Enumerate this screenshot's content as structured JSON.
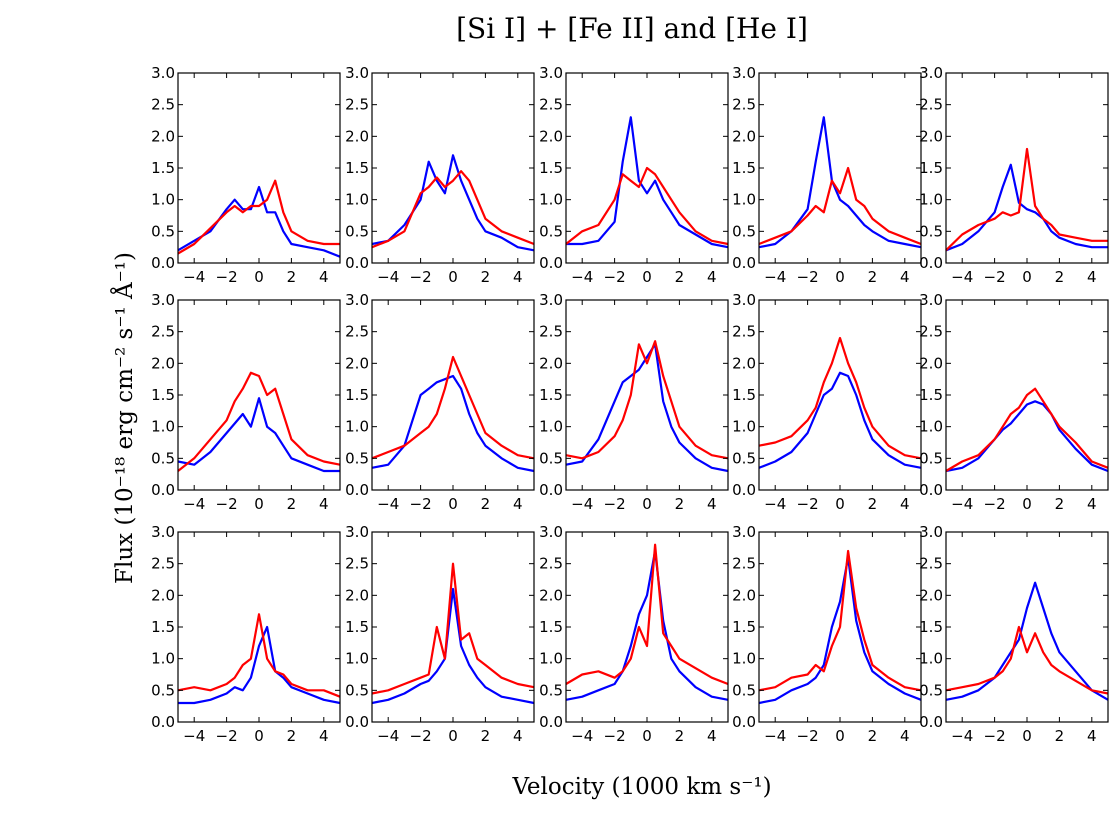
{
  "title": "[Si I] + [Fe II] and [He I]",
  "xlabel": "Velocity (1000 km s⁻¹)",
  "ylabel": "Flux (10⁻¹⁸ erg cm⁻² s⁻¹ Å⁻¹)",
  "colors": {
    "series_blue": "#0000ff",
    "series_red": "#ff0000"
  },
  "chart_data": {
    "type": "line",
    "layout": "grid of 3 rows x 5 columns",
    "x_range": [
      -5,
      5
    ],
    "ylim": [
      0,
      3.0
    ],
    "xticks": [
      -4,
      -2,
      0,
      2,
      4
    ],
    "xtick_labels": [
      "−4",
      "−2",
      "0",
      "2",
      "4"
    ],
    "yticks": [
      0,
      0.5,
      1.0,
      1.5,
      2.0,
      2.5,
      3.0
    ],
    "ytick_labels": [
      "0.0",
      "0.5",
      "1.0",
      "1.5",
      "2.0",
      "2.5",
      "3.0"
    ],
    "x": [
      -5,
      -4,
      -3,
      -2,
      -1.5,
      -1,
      -0.5,
      0,
      0.5,
      1,
      1.5,
      2,
      3,
      4,
      5
    ],
    "panels": [
      {
        "row": 1,
        "col": 1,
        "series": [
          {
            "name": "blue",
            "values": [
              0.2,
              0.35,
              0.5,
              0.85,
              1.0,
              0.85,
              0.85,
              1.2,
              0.8,
              0.8,
              0.5,
              0.3,
              0.25,
              0.2,
              0.1
            ]
          },
          {
            "name": "red",
            "values": [
              0.15,
              0.3,
              0.55,
              0.8,
              0.9,
              0.8,
              0.9,
              0.9,
              1.0,
              1.3,
              0.8,
              0.5,
              0.35,
              0.3,
              0.3
            ]
          }
        ]
      },
      {
        "row": 1,
        "col": 2,
        "series": [
          {
            "name": "blue",
            "values": [
              0.3,
              0.35,
              0.6,
              1.0,
              1.6,
              1.3,
              1.1,
              1.7,
              1.3,
              1.0,
              0.7,
              0.5,
              0.4,
              0.25,
              0.2
            ]
          },
          {
            "name": "red",
            "values": [
              0.25,
              0.35,
              0.5,
              1.1,
              1.2,
              1.35,
              1.2,
              1.3,
              1.45,
              1.3,
              1.0,
              0.7,
              0.5,
              0.4,
              0.3
            ]
          }
        ]
      },
      {
        "row": 1,
        "col": 3,
        "series": [
          {
            "name": "blue",
            "values": [
              0.3,
              0.3,
              0.35,
              0.65,
              1.6,
              2.3,
              1.3,
              1.1,
              1.3,
              1.0,
              0.8,
              0.6,
              0.45,
              0.3,
              0.25
            ]
          },
          {
            "name": "red",
            "values": [
              0.3,
              0.5,
              0.6,
              1.0,
              1.4,
              1.3,
              1.2,
              1.5,
              1.4,
              1.2,
              1.0,
              0.8,
              0.5,
              0.35,
              0.3
            ]
          }
        ]
      },
      {
        "row": 1,
        "col": 4,
        "series": [
          {
            "name": "blue",
            "values": [
              0.25,
              0.3,
              0.5,
              0.85,
              1.6,
              2.3,
              1.3,
              1.0,
              0.9,
              0.75,
              0.6,
              0.5,
              0.35,
              0.3,
              0.25
            ]
          },
          {
            "name": "red",
            "values": [
              0.3,
              0.4,
              0.5,
              0.75,
              0.9,
              0.8,
              1.3,
              1.1,
              1.5,
              1.0,
              0.9,
              0.7,
              0.5,
              0.4,
              0.3
            ]
          }
        ]
      },
      {
        "row": 1,
        "col": 5,
        "series": [
          {
            "name": "blue",
            "values": [
              0.2,
              0.3,
              0.5,
              0.8,
              1.2,
              1.55,
              0.95,
              0.85,
              0.8,
              0.7,
              0.5,
              0.4,
              0.3,
              0.25,
              0.25
            ]
          },
          {
            "name": "red",
            "values": [
              0.2,
              0.45,
              0.6,
              0.7,
              0.8,
              0.75,
              0.8,
              1.8,
              0.9,
              0.7,
              0.6,
              0.45,
              0.4,
              0.35,
              0.35
            ]
          }
        ]
      },
      {
        "row": 2,
        "col": 1,
        "series": [
          {
            "name": "blue",
            "values": [
              0.45,
              0.4,
              0.6,
              0.9,
              1.05,
              1.2,
              1.0,
              1.45,
              1.0,
              0.9,
              0.7,
              0.5,
              0.4,
              0.3,
              0.3
            ]
          },
          {
            "name": "red",
            "values": [
              0.3,
              0.5,
              0.8,
              1.1,
              1.4,
              1.6,
              1.85,
              1.8,
              1.5,
              1.6,
              1.2,
              0.8,
              0.55,
              0.45,
              0.4
            ]
          }
        ]
      },
      {
        "row": 2,
        "col": 2,
        "series": [
          {
            "name": "blue",
            "values": [
              0.35,
              0.4,
              0.7,
              1.5,
              1.6,
              1.7,
              1.75,
              1.8,
              1.6,
              1.2,
              0.9,
              0.7,
              0.5,
              0.35,
              0.3
            ]
          },
          {
            "name": "red",
            "values": [
              0.5,
              0.6,
              0.7,
              0.9,
              1.0,
              1.2,
              1.6,
              2.1,
              1.8,
              1.5,
              1.2,
              0.9,
              0.7,
              0.55,
              0.5
            ]
          }
        ]
      },
      {
        "row": 2,
        "col": 3,
        "series": [
          {
            "name": "blue",
            "values": [
              0.4,
              0.45,
              0.8,
              1.4,
              1.7,
              1.8,
              1.9,
              2.1,
              2.3,
              1.4,
              1.0,
              0.75,
              0.5,
              0.35,
              0.3
            ]
          },
          {
            "name": "red",
            "values": [
              0.55,
              0.5,
              0.6,
              0.85,
              1.1,
              1.5,
              2.3,
              2.0,
              2.35,
              1.8,
              1.4,
              1.0,
              0.7,
              0.55,
              0.5
            ]
          }
        ]
      },
      {
        "row": 2,
        "col": 4,
        "series": [
          {
            "name": "blue",
            "values": [
              0.35,
              0.45,
              0.6,
              0.9,
              1.2,
              1.5,
              1.6,
              1.85,
              1.8,
              1.5,
              1.1,
              0.8,
              0.55,
              0.4,
              0.35
            ]
          },
          {
            "name": "red",
            "values": [
              0.7,
              0.75,
              0.85,
              1.1,
              1.3,
              1.7,
              2.0,
              2.4,
              2.0,
              1.7,
              1.3,
              1.0,
              0.7,
              0.55,
              0.5
            ]
          }
        ]
      },
      {
        "row": 2,
        "col": 5,
        "series": [
          {
            "name": "blue",
            "values": [
              0.3,
              0.35,
              0.5,
              0.8,
              0.95,
              1.05,
              1.2,
              1.35,
              1.4,
              1.35,
              1.2,
              0.95,
              0.65,
              0.4,
              0.3
            ]
          },
          {
            "name": "red",
            "values": [
              0.3,
              0.45,
              0.55,
              0.8,
              1.0,
              1.2,
              1.3,
              1.5,
              1.6,
              1.4,
              1.2,
              1.0,
              0.75,
              0.45,
              0.35
            ]
          }
        ]
      },
      {
        "row": 3,
        "col": 1,
        "series": [
          {
            "name": "blue",
            "values": [
              0.3,
              0.3,
              0.35,
              0.45,
              0.55,
              0.5,
              0.7,
              1.2,
              1.5,
              0.8,
              0.7,
              0.55,
              0.45,
              0.35,
              0.3
            ]
          },
          {
            "name": "red",
            "values": [
              0.5,
              0.55,
              0.5,
              0.6,
              0.7,
              0.9,
              1.0,
              1.7,
              1.0,
              0.8,
              0.75,
              0.6,
              0.5,
              0.5,
              0.4
            ]
          }
        ]
      },
      {
        "row": 3,
        "col": 2,
        "series": [
          {
            "name": "blue",
            "values": [
              0.3,
              0.35,
              0.45,
              0.6,
              0.65,
              0.8,
              1.0,
              2.1,
              1.2,
              0.9,
              0.7,
              0.55,
              0.4,
              0.35,
              0.3
            ]
          },
          {
            "name": "red",
            "values": [
              0.45,
              0.5,
              0.6,
              0.7,
              0.75,
              1.5,
              1.0,
              2.5,
              1.3,
              1.4,
              1.0,
              0.9,
              0.7,
              0.6,
              0.55
            ]
          }
        ]
      },
      {
        "row": 3,
        "col": 3,
        "series": [
          {
            "name": "blue",
            "values": [
              0.35,
              0.4,
              0.5,
              0.6,
              0.8,
              1.2,
              1.7,
              2.0,
              2.7,
              1.6,
              1.0,
              0.8,
              0.55,
              0.4,
              0.35
            ]
          },
          {
            "name": "red",
            "values": [
              0.6,
              0.75,
              0.8,
              0.7,
              0.8,
              1.0,
              1.5,
              1.2,
              2.8,
              1.4,
              1.2,
              1.0,
              0.85,
              0.7,
              0.6
            ]
          }
        ]
      },
      {
        "row": 3,
        "col": 4,
        "series": [
          {
            "name": "blue",
            "values": [
              0.3,
              0.35,
              0.5,
              0.6,
              0.7,
              0.9,
              1.5,
              1.9,
              2.6,
              1.6,
              1.1,
              0.8,
              0.6,
              0.45,
              0.35
            ]
          },
          {
            "name": "red",
            "values": [
              0.5,
              0.55,
              0.7,
              0.75,
              0.9,
              0.8,
              1.2,
              1.5,
              2.7,
              1.8,
              1.3,
              0.9,
              0.7,
              0.55,
              0.5
            ]
          }
        ]
      },
      {
        "row": 3,
        "col": 5,
        "series": [
          {
            "name": "blue",
            "values": [
              0.35,
              0.4,
              0.5,
              0.7,
              0.9,
              1.1,
              1.3,
              1.8,
              2.2,
              1.8,
              1.4,
              1.1,
              0.8,
              0.5,
              0.35
            ]
          },
          {
            "name": "red",
            "values": [
              0.5,
              0.55,
              0.6,
              0.7,
              0.8,
              1.0,
              1.5,
              1.1,
              1.4,
              1.1,
              0.9,
              0.8,
              0.65,
              0.5,
              0.45
            ]
          }
        ]
      }
    ]
  }
}
